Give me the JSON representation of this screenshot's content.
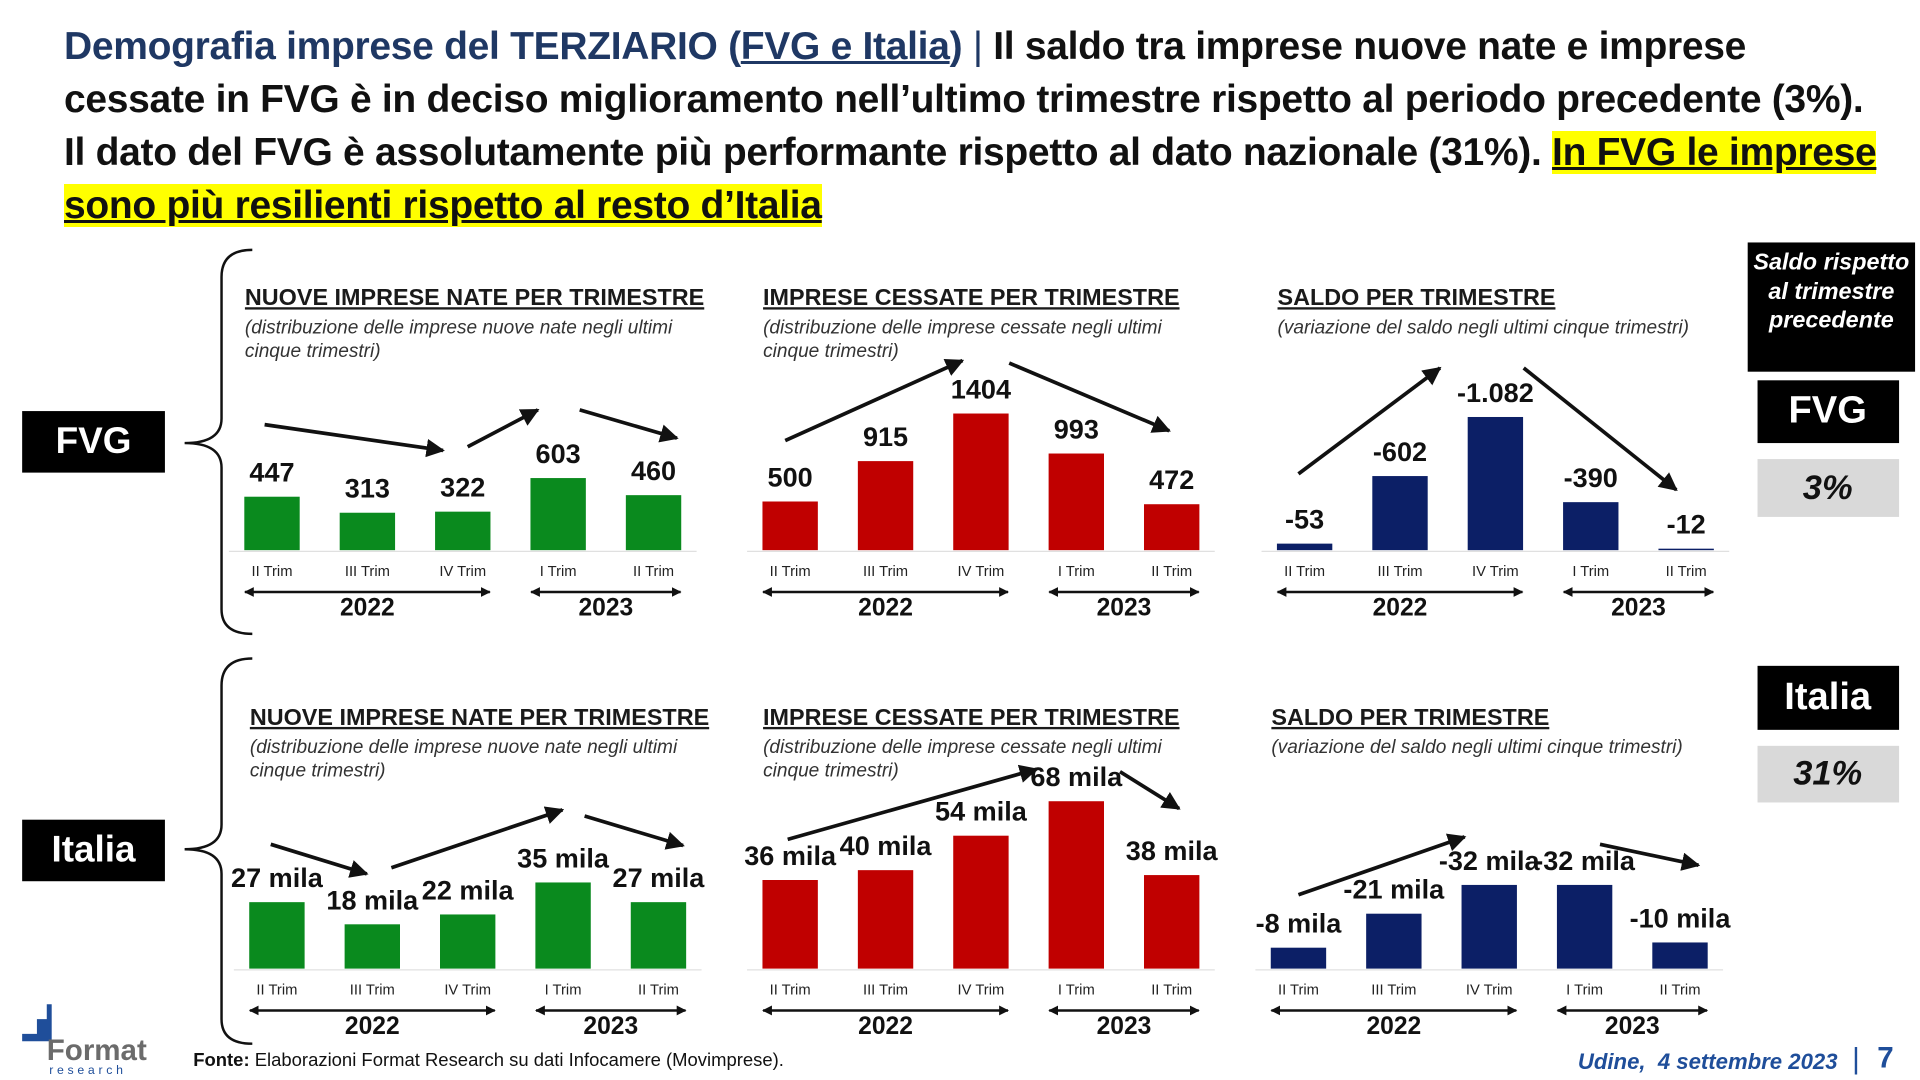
{
  "header": {
    "topic": "Demografia imprese del TERZIARIO (",
    "topic_link": "FVG e Italia",
    "topic_end": ")",
    "separator": "|",
    "statement": "Il saldo tra imprese nuove nate e imprese cessate in FVG è in deciso miglioramento nell’ultimo trimestre rispetto al periodo precedente (3%). Il dato del FVG è assolutamente più performante rispetto al dato nazionale (31%).",
    "highlight": "In FVG le imprese sono più resilienti rispetto al resto d’Italia"
  },
  "row_labels": [
    "FVG",
    "Italia"
  ],
  "side": {
    "heading": "Saldo rispetto al trimestre precedente",
    "items": [
      {
        "label": "FVG",
        "value": "3%"
      },
      {
        "label": "Italia",
        "value": "31%"
      }
    ]
  },
  "chart_data": [
    {
      "type": "bar",
      "title": "NUOVE IMPRESE NATE PER TRIMESTRE",
      "subtitle": "(distribuzione delle imprese nuove nate negli ultimi cinque trimestri)",
      "categories": [
        "II Trim",
        "III Trim",
        "IV Trim",
        "I Trim",
        "II Trim"
      ],
      "groups": [
        "2022",
        "2023"
      ],
      "values": [
        447,
        313,
        322,
        603,
        460
      ],
      "color": "#0a8a1e",
      "ylim": [
        0,
        1750
      ]
    },
    {
      "type": "bar",
      "title": "IMPRESE CESSATE PER TRIMESTRE",
      "subtitle": "(distribuzione delle imprese cessate negli ultimi cinque trimestri)",
      "categories": [
        "II Trim",
        "III Trim",
        "IV Trim",
        "I Trim",
        "II Trim"
      ],
      "groups": [
        "2022",
        "2023"
      ],
      "values": [
        500,
        915,
        1404,
        993,
        472
      ],
      "color": "#c00000",
      "ylim": [
        0,
        2150
      ]
    },
    {
      "type": "bar",
      "title": "SALDO PER TRIMESTRE",
      "subtitle": "(variazione del saldo negli ultimi cinque trimestri)",
      "categories": [
        "II Trim",
        "III Trim",
        "IV Trim",
        "I Trim",
        "II Trim"
      ],
      "groups": [
        "2022",
        "2023"
      ],
      "values": [
        -53,
        -602,
        -1082,
        -390,
        -12
      ],
      "value_labels": [
        "-53",
        "-602",
        "-1.082",
        "-390",
        "-12"
      ],
      "color": "#0c1f66",
      "ylim": [
        0,
        -1700
      ]
    },
    {
      "type": "bar",
      "title": "NUOVE IMPRESE NATE PER TRIMESTRE",
      "subtitle": "(distribuzione delle imprese nuove nate negli ultimi cinque trimestri)",
      "categories": [
        "II Trim",
        "III Trim",
        "IV Trim",
        "I Trim",
        "II Trim"
      ],
      "groups": [
        "2022",
        "2023"
      ],
      "values": [
        27,
        18,
        22,
        35,
        27
      ],
      "value_labels": [
        "27 mila",
        "18 mila",
        "22 mila",
        "35 mila",
        "27 mila"
      ],
      "color": "#0a8a1e",
      "ylim": [
        0,
        85
      ]
    },
    {
      "type": "bar",
      "title": "IMPRESE CESSATE PER TRIMESTRE",
      "subtitle": "(distribuzione delle imprese cessate negli ultimi cinque trimestri)",
      "categories": [
        "II Trim",
        "III Trim",
        "IV Trim",
        "I Trim",
        "II Trim"
      ],
      "groups": [
        "2022",
        "2023"
      ],
      "values": [
        36,
        40,
        54,
        68,
        38
      ],
      "value_labels": [
        "36 mila",
        "40 mila",
        "54 mila",
        "68 mila",
        "38 mila"
      ],
      "color": "#c00000",
      "ylim": [
        0,
        85
      ]
    },
    {
      "type": "bar",
      "title": "SALDO PER TRIMESTRE",
      "subtitle": "(variazione del saldo negli ultimi cinque trimestri)",
      "categories": [
        "II Trim",
        "III Trim",
        "IV Trim",
        "I Trim",
        "II Trim"
      ],
      "groups": [
        "2022",
        "2023"
      ],
      "values": [
        -8,
        -21,
        -32,
        -32,
        -10
      ],
      "value_labels": [
        "-8 mila",
        "-21 mila",
        "-32 mila",
        "-32 mila",
        "-10 mila"
      ],
      "color": "#0c1f66",
      "ylim": [
        0,
        -80
      ]
    }
  ],
  "footer": {
    "source_label": "Fonte:",
    "source": "Elaborazioni Format Research su dati Infocamere (Movimprese).",
    "place_date": "Udine,  4 settembre 2023",
    "separator": "|",
    "page": "7",
    "logo": "Format",
    "logo_sub": "research"
  }
}
